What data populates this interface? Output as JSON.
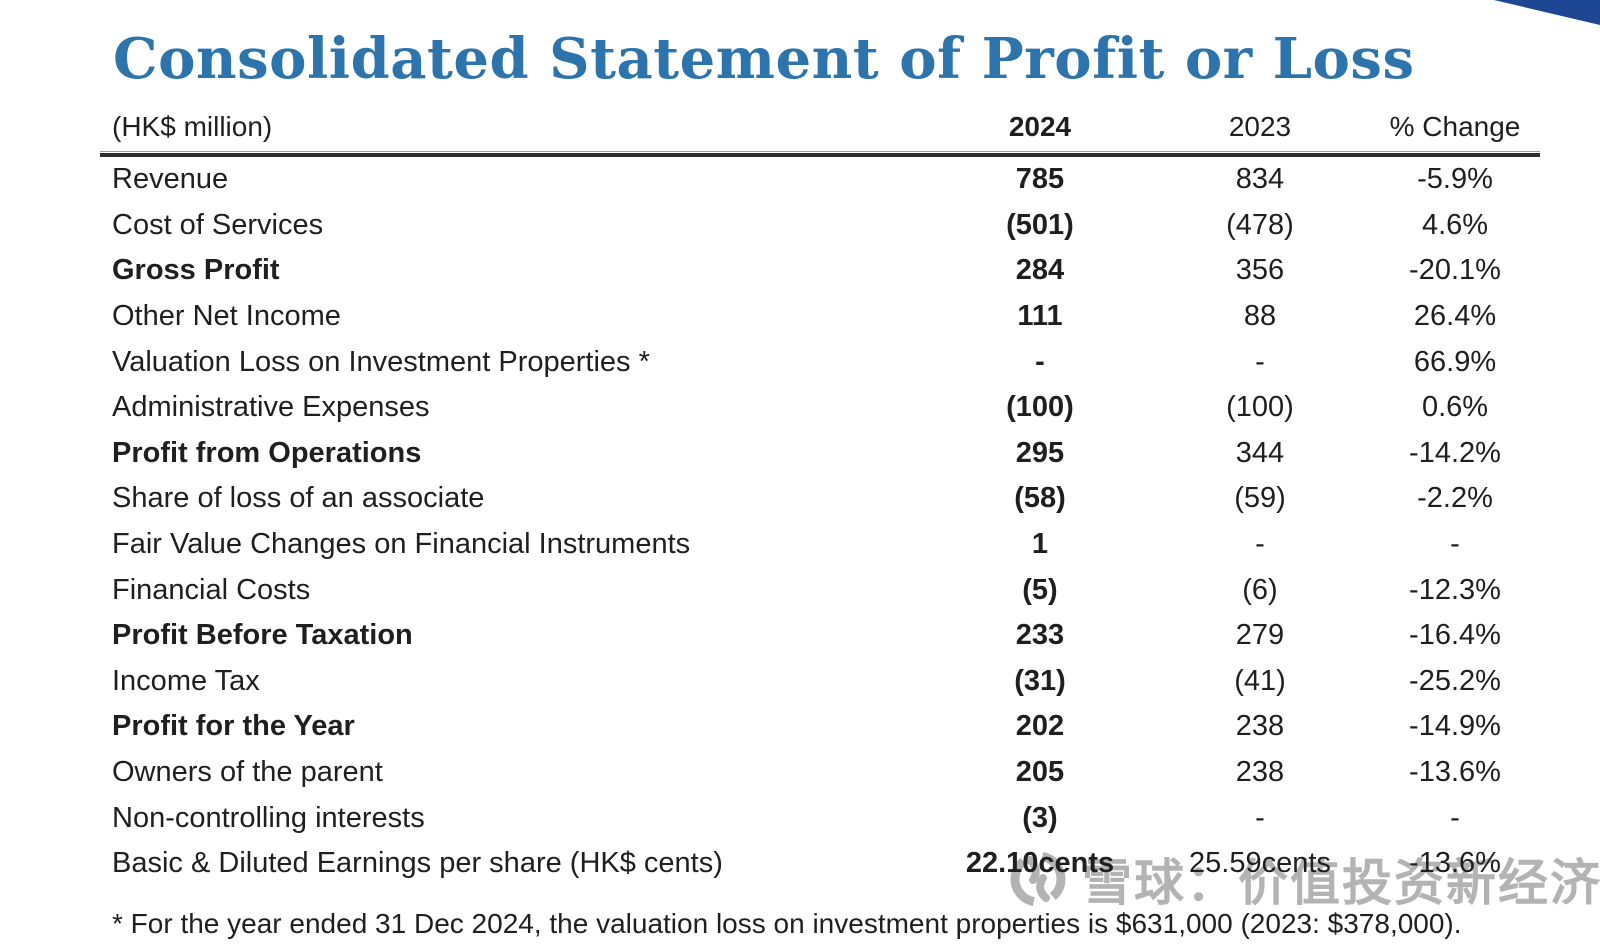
{
  "slide": {
    "title": "Consolidated Statement of Profit or Loss",
    "footnote": "* For the year ended 31 Dec 2024, the valuation loss on investment properties is $631,000 (2023: $378,000).",
    "colors": {
      "title_blue": "#2d74ad",
      "corner_navy": "#1d4693",
      "text": "#1f1f1f",
      "watermark_gray": "#b3b3b3"
    }
  },
  "table": {
    "unit_label": "(HK$ million)",
    "columns": [
      "2024",
      "2023",
      "% Change"
    ],
    "rows": [
      {
        "label": "Revenue",
        "bold": false,
        "v2024": "785",
        "v2023": "834",
        "change": "-5.9%"
      },
      {
        "label": "Cost of Services",
        "bold": false,
        "v2024": "(501)",
        "v2023": "(478)",
        "change": "4.6%"
      },
      {
        "label": "Gross Profit",
        "bold": true,
        "v2024": "284",
        "v2023": "356",
        "change": "-20.1%"
      },
      {
        "label": "Other Net Income",
        "bold": false,
        "v2024": "111",
        "v2023": "88",
        "change": "26.4%"
      },
      {
        "label": "Valuation Loss on Investment Properties *",
        "bold": false,
        "v2024": "-",
        "v2023": "-",
        "change": "66.9%"
      },
      {
        "label": "Administrative Expenses",
        "bold": false,
        "v2024": "(100)",
        "v2023": "(100)",
        "change": "0.6%"
      },
      {
        "label": "Profit from Operations",
        "bold": true,
        "v2024": "295",
        "v2023": "344",
        "change": "-14.2%"
      },
      {
        "label": "Share of loss of an associate",
        "bold": false,
        "v2024": "(58)",
        "v2023": "(59)",
        "change": "-2.2%"
      },
      {
        "label": "Fair Value Changes on Financial Instruments",
        "bold": false,
        "v2024": "1",
        "v2023": "-",
        "change": "-"
      },
      {
        "label": "Financial Costs",
        "bold": false,
        "v2024": "(5)",
        "v2023": "(6)",
        "change": "-12.3%"
      },
      {
        "label": "Profit Before Taxation",
        "bold": true,
        "v2024": "233",
        "v2023": "279",
        "change": "-16.4%"
      },
      {
        "label": "Income Tax",
        "bold": false,
        "v2024": "(31)",
        "v2023": "(41)",
        "change": "-25.2%"
      },
      {
        "label": "Profit for the Year",
        "bold": true,
        "v2024": "202",
        "v2023": "238",
        "change": "-14.9%"
      },
      {
        "label": "Owners of the parent",
        "bold": false,
        "v2024": "205",
        "v2023": "238",
        "change": "-13.6%"
      },
      {
        "label": "Non-controlling interests",
        "bold": false,
        "v2024": "(3)",
        "v2023": "-",
        "change": "-"
      },
      {
        "label": "Basic & Diluted Earnings per share (HK$ cents)",
        "bold": false,
        "v2024": "22.10cents",
        "v2023": "25.59cents",
        "change": "-13.6%"
      }
    ]
  },
  "watermark": {
    "logo": "xueqiu-snowball-logo",
    "text": "雪球：价值投资新经济"
  }
}
